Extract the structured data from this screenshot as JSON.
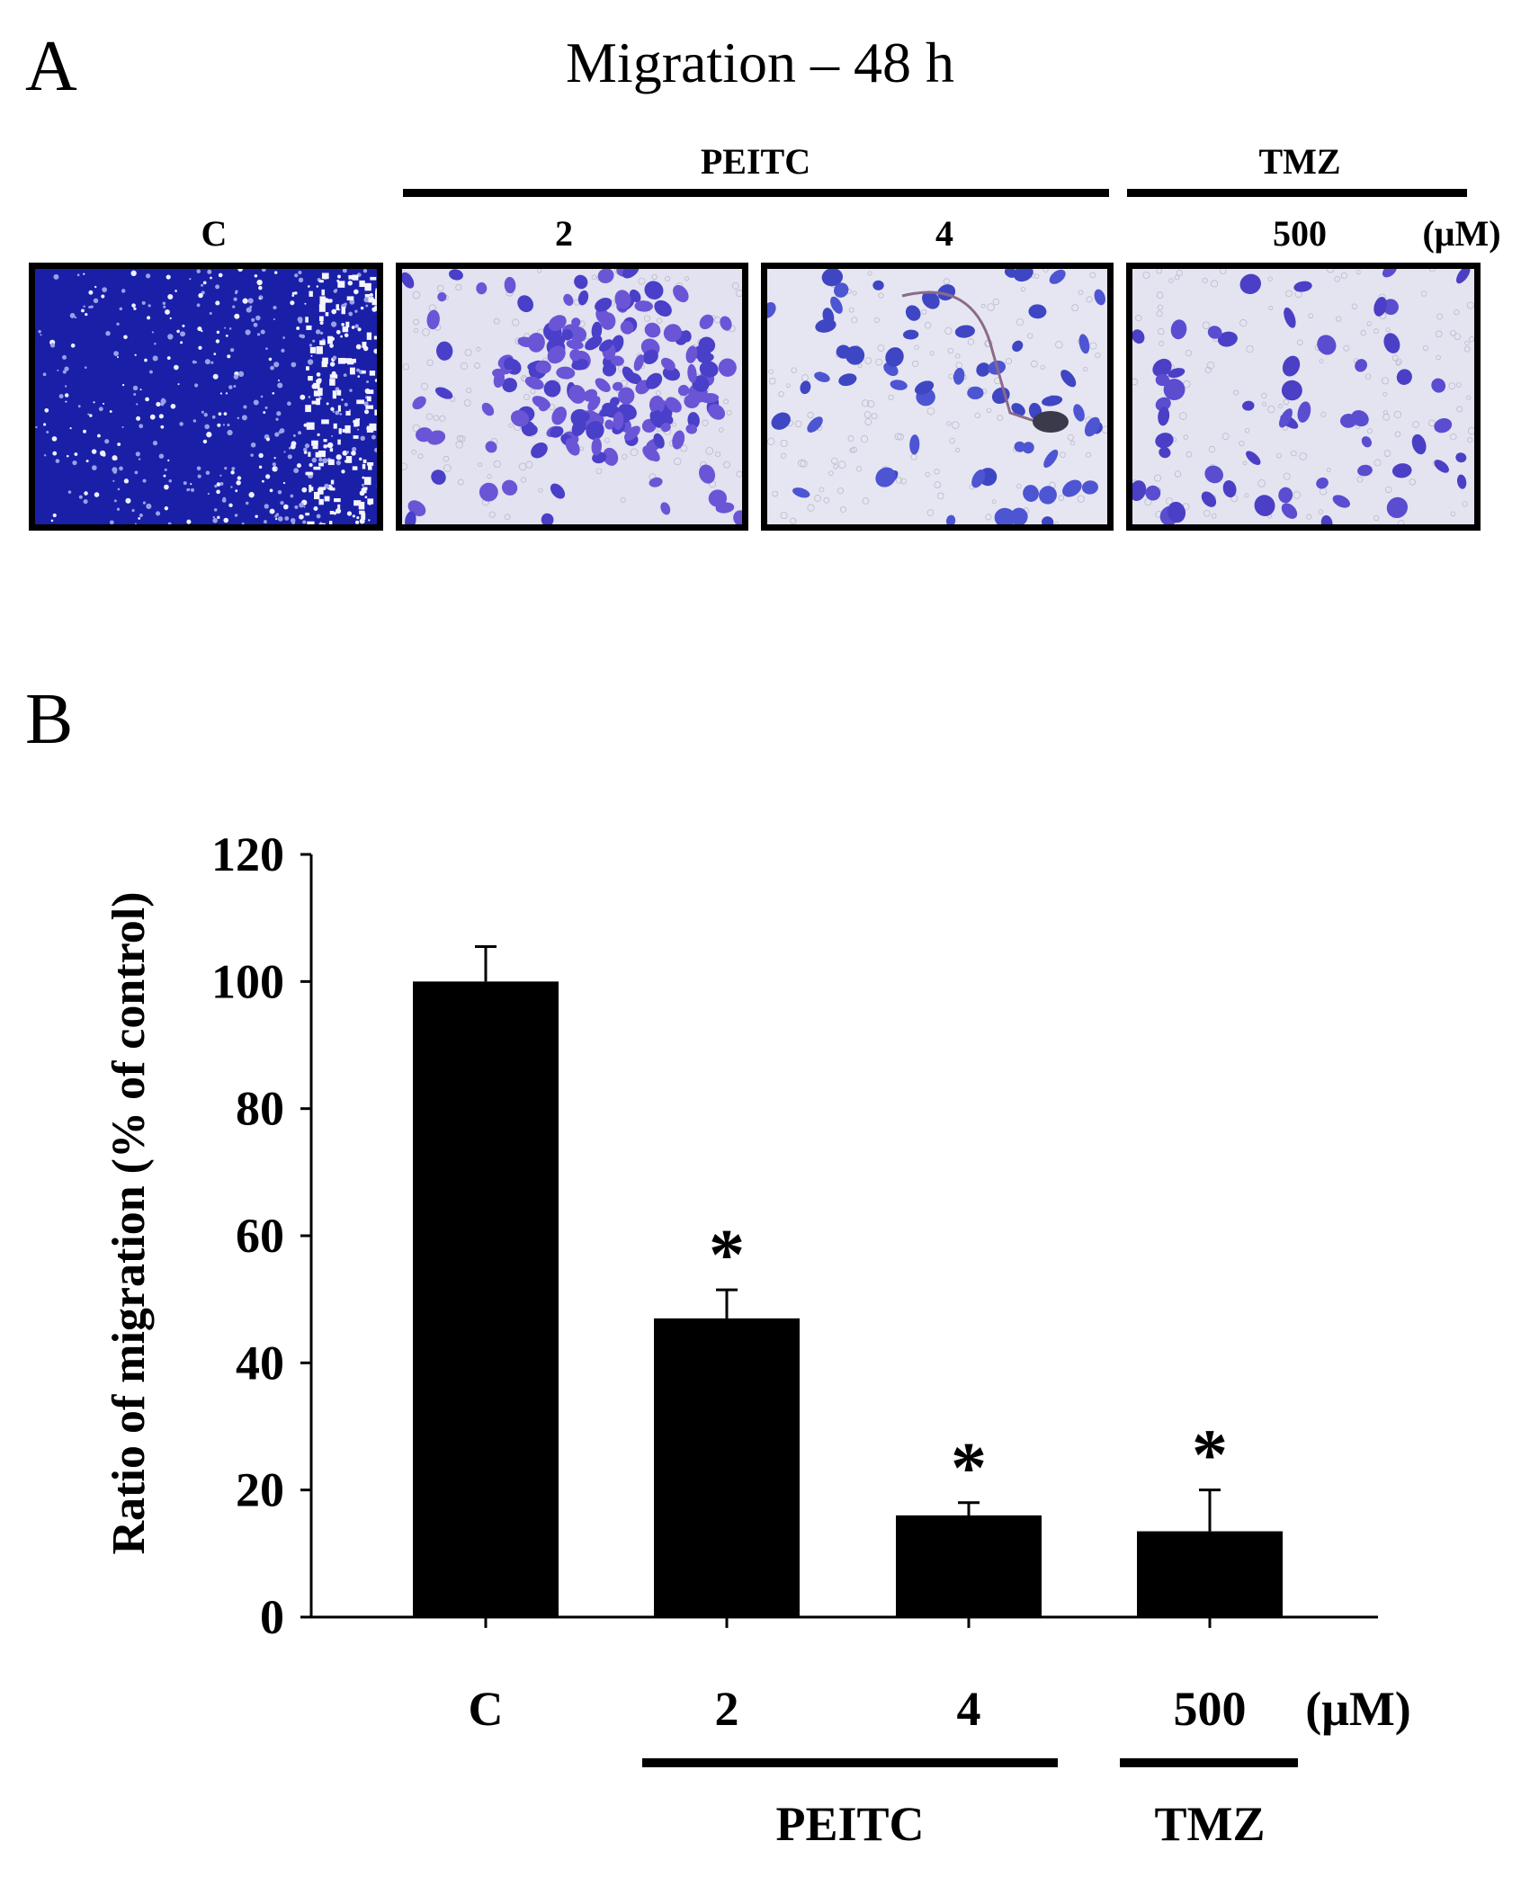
{
  "panel_a": {
    "letter": "A",
    "title": "Migration – 48 h",
    "group_labels": [
      "PEITC",
      "TMZ"
    ],
    "image_labels": [
      "C",
      "2",
      "4",
      "500"
    ],
    "unit": "(μM)"
  },
  "panel_b": {
    "letter": "B"
  },
  "colors": {
    "bar": "#000000",
    "stain_dense": "#1a1fa8",
    "stain_cell": "#5a4bd0",
    "background_field": "#dcdcef"
  },
  "chart_data": {
    "type": "bar",
    "categories": [
      "C",
      "2",
      "4",
      "500"
    ],
    "values": [
      100,
      47,
      16,
      13.5
    ],
    "errors": [
      5.5,
      4.5,
      2,
      6.5
    ],
    "significance": [
      "",
      "*",
      "*",
      "*"
    ],
    "ylabel": "Ratio of migration (% of control)",
    "unit": "(μM)",
    "ylim": [
      0,
      120
    ],
    "yticks": [
      "0",
      "20",
      "40",
      "60",
      "80",
      "100",
      "120"
    ],
    "groups": [
      {
        "label": "PEITC",
        "categories": [
          "2",
          "4"
        ]
      },
      {
        "label": "TMZ",
        "categories": [
          "500"
        ]
      }
    ]
  }
}
